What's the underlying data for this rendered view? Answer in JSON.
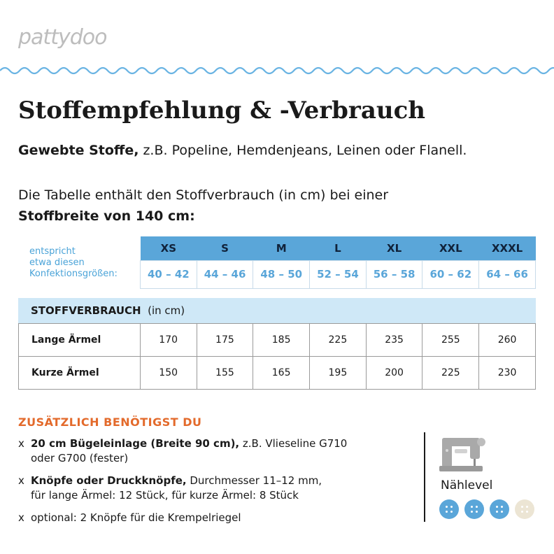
{
  "brand": {
    "logo": "pattydoo"
  },
  "title": "Stoffempfehlung & -Verbrauch",
  "fabric": {
    "bold": "Gewebte Stoffe,",
    "rest": " z.B. Popeline, Hemdenjeans, Leinen oder Flanell."
  },
  "intro": {
    "line1": "Die Tabelle enthält den Stoffverbrauch (in cm) bei einer",
    "line2": "Stoffbreite von 140 cm:"
  },
  "sizes": {
    "label_lines": [
      "entspricht",
      "etwa diesen",
      "Konfektionsgrößen:"
    ],
    "headers": [
      "XS",
      "S",
      "M",
      "L",
      "XL",
      "XXL",
      "XXXL"
    ],
    "ranges": [
      "40 – 42",
      "44 – 46",
      "48 – 50",
      "52 – 54",
      "56 – 58",
      "60 – 62",
      "64 – 66"
    ]
  },
  "consumption": {
    "title": "STOFFVERBRAUCH",
    "unit": "(in cm)",
    "rows": [
      {
        "label": "Lange Ärmel",
        "values": [
          "170",
          "175",
          "185",
          "225",
          "235",
          "255",
          "260"
        ]
      },
      {
        "label": "Kurze Ärmel",
        "values": [
          "150",
          "155",
          "165",
          "195",
          "200",
          "225",
          "230"
        ]
      }
    ]
  },
  "extras": {
    "title": "ZUSÄTZLICH BENÖTIGST DU",
    "bullet": "x",
    "items": [
      {
        "bold": "20 cm Bügeleinlage (Breite 90 cm),",
        "line1": " z.B. Vlieseline G710",
        "line2": "oder G700 (fester)"
      },
      {
        "bold": "Knöpfe oder Druckknöpfe,",
        "line1": " Durchmesser 11–12 mm,",
        "line2": "für lange Ärmel: 12 Stück, für kurze Ärmel: 8 Stück"
      },
      {
        "bold": "",
        "line1": "optional: 2 Knöpfe für die Krempelriegel",
        "line2": ""
      }
    ]
  },
  "level": {
    "label": "Nählevel",
    "icon": "sewing-machine-icon",
    "value": 3,
    "max": 4,
    "colors": {
      "active": "#5aa6d9",
      "inactive": "#ece5d4",
      "accent": "#e36a2b"
    }
  }
}
